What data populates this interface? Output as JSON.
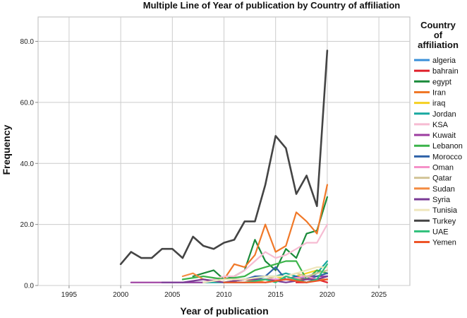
{
  "chart_data": {
    "type": "line",
    "title": "Multiple Line of Year of publication by Country of affiliation",
    "xlabel": "Year of publication",
    "ylabel": "Frequency",
    "xlim": [
      1992,
      2028
    ],
    "ylim": [
      0,
      88
    ],
    "x_ticks": [
      1995,
      2000,
      2005,
      2010,
      2015,
      2020,
      2025
    ],
    "y_ticks": [
      0,
      20,
      40,
      60,
      80
    ],
    "y_tick_labels": [
      "0.0",
      "20.0",
      "40.0",
      "60.0",
      "80.0"
    ],
    "grid": true,
    "legend_title_lines": [
      "Country",
      "of",
      "affiliation"
    ],
    "legend_position": "right",
    "series": [
      {
        "name": "algeria",
        "color": "#3a8fd8",
        "x": [
          2014,
          2016,
          2018,
          2019,
          2020
        ],
        "y": [
          1,
          2,
          1,
          2,
          3
        ]
      },
      {
        "name": "bahrain",
        "color": "#e0202a",
        "x": [
          2017,
          2018,
          2019,
          2020
        ],
        "y": [
          1,
          1,
          2,
          1
        ]
      },
      {
        "name": "egypt",
        "color": "#1a8a3a",
        "x": [
          2007,
          2008,
          2009,
          2010,
          2011,
          2012,
          2013,
          2014,
          2015,
          2016,
          2017,
          2018,
          2019,
          2020
        ],
        "y": [
          3,
          4,
          5,
          2,
          3,
          5,
          15,
          8,
          5,
          12,
          9,
          17,
          18,
          29
        ]
      },
      {
        "name": "Iran",
        "color": "#f07828",
        "x": [
          2010,
          2011,
          2012,
          2013,
          2014,
          2015,
          2016,
          2017,
          2018,
          2019,
          2020
        ],
        "y": [
          2,
          7,
          6,
          10,
          20,
          11,
          13,
          24,
          21,
          17,
          33
        ]
      },
      {
        "name": "iraq",
        "color": "#f5d021",
        "x": [
          2012,
          2013,
          2014,
          2015,
          2016,
          2017,
          2018,
          2019,
          2020
        ],
        "y": [
          1,
          1,
          2,
          3,
          2,
          3,
          4,
          5,
          4
        ]
      },
      {
        "name": "Jordan",
        "color": "#18a8a0",
        "x": [
          2006,
          2008,
          2010,
          2012,
          2013,
          2014,
          2015,
          2016,
          2017,
          2018,
          2019,
          2020
        ],
        "y": [
          1,
          1,
          1,
          2,
          2,
          3,
          3,
          4,
          3,
          2,
          4,
          8
        ]
      },
      {
        "name": "KSA",
        "color": "#f6bcd2",
        "x": [
          2008,
          2009,
          2010,
          2011,
          2012,
          2013,
          2014,
          2015,
          2016,
          2017,
          2018,
          2019,
          2020
        ],
        "y": [
          1,
          2,
          3,
          3,
          5,
          8,
          11,
          9,
          10,
          12,
          14,
          14,
          20
        ]
      },
      {
        "name": "Kuwait",
        "color": "#9c3da0",
        "x": [
          2001,
          2003,
          2005,
          2008,
          2010,
          2012,
          2014,
          2016,
          2018,
          2020
        ],
        "y": [
          1,
          1,
          1,
          1,
          2,
          2,
          2,
          2,
          3,
          3
        ]
      },
      {
        "name": "Lebanon",
        "color": "#3bb34a",
        "x": [
          2006,
          2008,
          2010,
          2012,
          2013,
          2014,
          2015,
          2016,
          2017,
          2018,
          2019,
          2020
        ],
        "y": [
          2,
          3,
          2,
          3,
          5,
          6,
          7,
          8,
          8,
          2,
          5,
          4
        ]
      },
      {
        "name": "Morocco",
        "color": "#2f62a8",
        "x": [
          2012,
          2013,
          2014,
          2015,
          2016,
          2017,
          2018,
          2019,
          2020
        ],
        "y": [
          2,
          3,
          3,
          6,
          2,
          3,
          2,
          3,
          4
        ]
      },
      {
        "name": "Oman",
        "color": "#f592c8",
        "x": [
          2010,
          2012,
          2014,
          2016,
          2018,
          2019,
          2020
        ],
        "y": [
          1,
          1,
          2,
          2,
          3,
          2,
          3
        ]
      },
      {
        "name": "Qatar",
        "color": "#d2c497",
        "x": [
          2012,
          2013,
          2014,
          2015,
          2016,
          2017,
          2018,
          2019,
          2020
        ],
        "y": [
          1,
          2,
          2,
          3,
          3,
          4,
          3,
          4,
          5
        ]
      },
      {
        "name": "Sudan",
        "color": "#f48c42",
        "x": [
          2006,
          2007,
          2008,
          2010,
          2012,
          2014,
          2016,
          2018,
          2020
        ],
        "y": [
          3,
          4,
          2,
          1,
          2,
          1,
          2,
          2,
          2
        ]
      },
      {
        "name": "Syria",
        "color": "#7a3a95",
        "x": [
          2004,
          2006,
          2008,
          2010,
          2012,
          2014,
          2016,
          2018,
          2019,
          2020
        ],
        "y": [
          1,
          1,
          2,
          1,
          2,
          2,
          1,
          2,
          2,
          3
        ]
      },
      {
        "name": "Tunisia",
        "color": "#efe6bc",
        "x": [
          2008,
          2010,
          2012,
          2014,
          2016,
          2017,
          2018,
          2019,
          2020
        ],
        "y": [
          1,
          2,
          2,
          3,
          3,
          4,
          5,
          6,
          6
        ]
      },
      {
        "name": "Turkey",
        "color": "#444444",
        "x": [
          2000,
          2001,
          2002,
          2003,
          2004,
          2005,
          2006,
          2007,
          2008,
          2009,
          2010,
          2011,
          2012,
          2013,
          2014,
          2015,
          2016,
          2017,
          2018,
          2019,
          2020
        ],
        "y": [
          7,
          11,
          9,
          9,
          12,
          12,
          9,
          16,
          13,
          12,
          14,
          15,
          21,
          21,
          33,
          49,
          45,
          30,
          36,
          26,
          77
        ]
      },
      {
        "name": "UAE",
        "color": "#2ec07a",
        "x": [
          2010,
          2012,
          2014,
          2015,
          2016,
          2017,
          2018,
          2019,
          2020
        ],
        "y": [
          1,
          1,
          2,
          1,
          3,
          2,
          1,
          2,
          7
        ]
      },
      {
        "name": "Yemen",
        "color": "#ee5528",
        "x": [
          2010,
          2012,
          2014,
          2016,
          2018,
          2020
        ],
        "y": [
          1,
          1,
          1,
          2,
          1,
          2
        ]
      }
    ]
  }
}
